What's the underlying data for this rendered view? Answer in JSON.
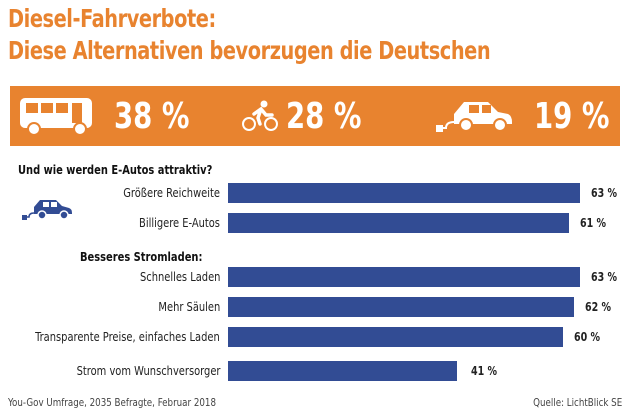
{
  "title_line1": "Diesel-Fahrverbote:",
  "title_line2": "Diese Alternativen bevorzugen die Deutschen",
  "colors": {
    "orange": "#E8832F",
    "bar": "#324C94"
  },
  "alternatives": [
    {
      "icon": "bus-icon",
      "value": "38 %"
    },
    {
      "icon": "bicycle-icon",
      "value": "28 %"
    },
    {
      "icon": "electric-car-icon",
      "value": "19 %"
    }
  ],
  "chart_data": {
    "type": "bar",
    "orientation": "horizontal",
    "groups": [
      {
        "heading": "Und wie werden E-Autos attraktiv?",
        "categories": [
          "Größere Reichweite",
          "Billigere E-Autos"
        ],
        "values": [
          63,
          61
        ]
      },
      {
        "heading": "Besseres Stromladen:",
        "categories": [
          "Schnelles Laden",
          "Mehr Säulen",
          "Transparente Preise, einfaches Laden",
          "Strom vom Wunschversorger"
        ],
        "values": [
          63,
          62,
          60,
          41
        ]
      }
    ],
    "value_suffix": " %",
    "grid": false
  },
  "footer": {
    "left": "You-Gov Umfrage, 2035 Befragte, Februar 2018",
    "right": "Quelle: LichtBlick SE"
  }
}
